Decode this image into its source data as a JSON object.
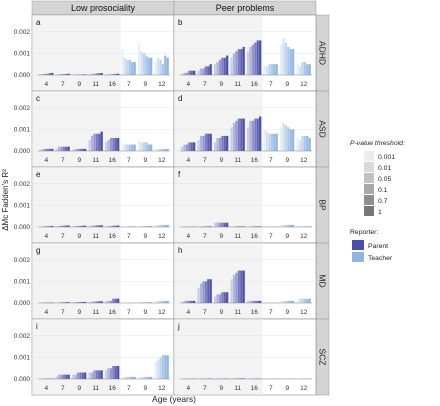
{
  "figure": {
    "col_strips": [
      "Low prosociality",
      "Peer problems"
    ],
    "row_strips": [
      "ADHD",
      "ASD",
      "BP",
      "MD",
      "SCZ"
    ],
    "ylabel": "ΔMc Fadden's R²",
    "xlabel": "Age (years)",
    "legend_pvalue_title": "P-value threshold:",
    "legend_pvalue_levels": [
      "0.001",
      "0.01",
      "0.05",
      "0.1",
      "0.7",
      "1"
    ],
    "legend_reporter_title": "Reporter:",
    "legend_reporter_items": [
      {
        "name": "Parent",
        "color": "#4a4ea6"
      },
      {
        "name": "Teacher",
        "color": "#8fb6df"
      }
    ]
  },
  "chart_data": {
    "type": "bar",
    "ylim": [
      0,
      0.0025
    ],
    "yticks": [
      "0.000",
      "0.001",
      "0.002"
    ],
    "categories": [
      "4",
      "7",
      "9",
      "11",
      "16",
      "7",
      "9",
      "12"
    ],
    "category_reporter": [
      "Parent",
      "Parent",
      "Parent",
      "Parent",
      "Parent",
      "Teacher",
      "Teacher",
      "Teacher"
    ],
    "thresholds": [
      "0.001",
      "0.01",
      "0.05",
      "0.1",
      "0.7",
      "1"
    ],
    "panels": [
      {
        "letter": "a",
        "row": "ADHD",
        "col": "Low prosociality",
        "values": [
          [
            3e-05,
            4e-05,
            5e-05,
            6e-05,
            8e-05,
            0.0001
          ],
          [
            2e-05,
            3e-05,
            4e-05,
            4e-05,
            5e-05,
            6e-05
          ],
          [
            1e-05,
            1e-05,
            2e-05,
            2e-05,
            3e-05,
            3e-05
          ],
          [
            4e-05,
            5e-05,
            6e-05,
            7e-05,
            8e-05,
            9e-05
          ],
          [
            2e-05,
            3e-05,
            3e-05,
            4e-05,
            5e-05,
            6e-05
          ],
          [
            0.0012,
            0.0008,
            0.0007,
            0.0007,
            0.0006,
            0.0006
          ],
          [
            0.0015,
            0.0011,
            0.001,
            0.0009,
            0.0008,
            0.0008
          ],
          [
            0.0006,
            0.0008,
            0.0007,
            0.0005,
            0.0009,
            0.0008
          ]
        ]
      },
      {
        "letter": "b",
        "row": "ADHD",
        "col": "Peer problems",
        "values": [
          [
            5e-05,
            0.0001,
            0.0001,
            0.0002,
            0.0002,
            0.0002
          ],
          [
            0.0002,
            0.0003,
            0.0003,
            0.0004,
            0.0004,
            0.0005
          ],
          [
            0.0005,
            0.0006,
            0.0007,
            0.0008,
            0.0008,
            0.0009
          ],
          [
            0.0008,
            0.001,
            0.0011,
            0.0012,
            0.0012,
            0.0013
          ],
          [
            0.0011,
            0.0013,
            0.0014,
            0.0015,
            0.0016,
            0.0016
          ],
          [
            0.0004,
            0.0004,
            0.0005,
            0.0005,
            0.0005,
            0.0005
          ],
          [
            0.0014,
            0.0017,
            0.0015,
            0.0013,
            0.0012,
            0.0012
          ],
          [
            0.0005,
            0.0004,
            0.0006,
            0.0006,
            0.0005,
            0.0005
          ]
        ]
      },
      {
        "letter": "c",
        "row": "ASD",
        "col": "Low prosociality",
        "values": [
          [
            5e-05,
            8e-05,
            0.0001,
            0.0001,
            0.0001,
            0.0001
          ],
          [
            0.0001,
            0.0002,
            0.0002,
            0.0002,
            0.0002,
            0.0002
          ],
          [
            5e-05,
            0.0001,
            0.0001,
            0.0001,
            0.0001,
            0.0001
          ],
          [
            0.0005,
            0.0007,
            0.0008,
            0.0008,
            0.0008,
            0.0009
          ],
          [
            0.0004,
            0.0005,
            0.0006,
            0.0006,
            0.0006,
            0.0006
          ],
          [
            0.0002,
            0.0003,
            0.0003,
            0.0003,
            0.0003,
            0.0003
          ],
          [
            0.0005,
            0.0004,
            0.0004,
            0.0004,
            0.0003,
            0.0003
          ],
          [
            0.0001,
            0.0001,
            0.0001,
            0.0001,
            0.0001,
            0.0001
          ]
        ]
      },
      {
        "letter": "d",
        "row": "ASD",
        "col": "Peer problems",
        "values": [
          [
            0.0002,
            0.0003,
            0.0003,
            0.0004,
            0.0004,
            0.0004
          ],
          [
            0.0005,
            0.0007,
            0.0007,
            0.0008,
            0.0008,
            0.0008
          ],
          [
            0.0004,
            0.0006,
            0.0006,
            0.0007,
            0.0007,
            0.0007
          ],
          [
            0.0011,
            0.0013,
            0.0014,
            0.0015,
            0.0015,
            0.0015
          ],
          [
            0.0011,
            0.0014,
            0.0014,
            0.0015,
            0.0015,
            0.0016
          ],
          [
            0.001,
            0.0009,
            0.0008,
            0.0008,
            0.0008,
            0.0008
          ],
          [
            0.0011,
            0.0013,
            0.0012,
            0.0011,
            0.001,
            0.001
          ],
          [
            0.0006,
            0.0005,
            0.0007,
            0.0007,
            0.0007,
            0.0006
          ]
        ]
      },
      {
        "letter": "e",
        "row": "BP",
        "col": "Low prosociality",
        "values": [
          [
            2e-05,
            3e-05,
            3e-05,
            4e-05,
            4e-05,
            5e-05
          ],
          [
            4e-05,
            5e-05,
            6e-05,
            6e-05,
            7e-05,
            7e-05
          ],
          [
            3e-05,
            4e-05,
            5e-05,
            5e-05,
            6e-05,
            6e-05
          ],
          [
            5e-05,
            6e-05,
            7e-05,
            7e-05,
            8e-05,
            8e-05
          ],
          [
            3e-05,
            4e-05,
            5e-05,
            6e-05,
            6e-05,
            7e-05
          ],
          [
            2e-05,
            2e-05,
            3e-05,
            3e-05,
            3e-05,
            3e-05
          ],
          [
            4e-05,
            4e-05,
            5e-05,
            5e-05,
            5e-05,
            5e-05
          ],
          [
            0.0001,
            0.0001,
            0.0001,
            0.0001,
            0.0001,
            0.0001
          ]
        ]
      },
      {
        "letter": "f",
        "row": "BP",
        "col": "Peer problems",
        "values": [
          [
            1e-05,
            1e-05,
            1e-05,
            1e-05,
            1e-05,
            1e-05
          ],
          [
            2e-05,
            2e-05,
            3e-05,
            3e-05,
            3e-05,
            3e-05
          ],
          [
            0.0002,
            0.0002,
            0.0002,
            0.0002,
            0.0002,
            0.0002
          ],
          [
            2e-05,
            2e-05,
            3e-05,
            3e-05,
            3e-05,
            3e-05
          ],
          [
            2e-05,
            2e-05,
            3e-05,
            3e-05,
            3e-05,
            3e-05
          ],
          [
            2e-05,
            2e-05,
            2e-05,
            2e-05,
            2e-05,
            2e-05
          ],
          [
            0.0001,
            0.0001,
            0.0001,
            0.0001,
            0.0001,
            0.0001
          ],
          [
            3e-05,
            3e-05,
            3e-05,
            3e-05,
            3e-05,
            3e-05
          ]
        ]
      },
      {
        "letter": "g",
        "row": "MD",
        "col": "Low prosociality",
        "values": [
          [
            1e-05,
            1e-05,
            2e-05,
            2e-05,
            2e-05,
            2e-05
          ],
          [
            2e-05,
            3e-05,
            3e-05,
            4e-05,
            4e-05,
            4e-05
          ],
          [
            3e-05,
            4e-05,
            4e-05,
            5e-05,
            5e-05,
            5e-05
          ],
          [
            5e-05,
            6e-05,
            7e-05,
            7e-05,
            8e-05,
            8e-05
          ],
          [
            0.0001,
            0.0001,
            0.0001,
            0.0002,
            0.0002,
            0.0002
          ],
          [
            1e-05,
            1e-05,
            1e-05,
            1e-05,
            1e-05,
            1e-05
          ],
          [
            3e-05,
            4e-05,
            4e-05,
            4e-05,
            4e-05,
            4e-05
          ],
          [
            0.0001,
            0.0001,
            0.0001,
            0.0001,
            0.0001,
            0.0001
          ]
        ]
      },
      {
        "letter": "h",
        "row": "MD",
        "col": "Peer problems",
        "values": [
          [
            5e-05,
            0.0001,
            0.0001,
            0.0001,
            0.0001,
            0.0001
          ],
          [
            0.0007,
            0.0009,
            0.001,
            0.001,
            0.0011,
            0.0011
          ],
          [
            0.0003,
            0.0004,
            0.0004,
            0.0005,
            0.0005,
            0.0005
          ],
          [
            0.0011,
            0.0013,
            0.0014,
            0.0015,
            0.0015,
            0.0015
          ],
          [
            0.0001,
            0.0001,
            0.0001,
            0.0001,
            0.0001,
            0.0001
          ],
          [
            1e-05,
            1e-05,
            1e-05,
            1e-05,
            1e-05,
            1e-05
          ],
          [
            0.0001,
            0.0001,
            0.0001,
            0.0001,
            0.0001,
            0.0001
          ],
          [
            0.0001,
            0.0002,
            0.0002,
            0.0002,
            0.0002,
            0.0002
          ]
        ]
      },
      {
        "letter": "i",
        "row": "SCZ",
        "col": "Low prosociality",
        "values": [
          [
            1e-05,
            2e-05,
            2e-05,
            2e-05,
            2e-05,
            2e-05
          ],
          [
            0.0001,
            0.0002,
            0.0002,
            0.0002,
            0.0002,
            0.0002
          ],
          [
            0.0002,
            0.0002,
            0.0003,
            0.0003,
            0.0003,
            0.0003
          ],
          [
            0.0003,
            0.0003,
            0.0004,
            0.0004,
            0.0004,
            0.0004
          ],
          [
            0.0004,
            0.0005,
            0.0005,
            0.0006,
            0.0006,
            0.0006
          ],
          [
            0.0001,
            0.0001,
            0.0001,
            0.0001,
            0.0001,
            0.0001
          ],
          [
            0.0001,
            0.0001,
            0.0001,
            0.0001,
            0.0001,
            0.0001
          ],
          [
            0.0008,
            0.0009,
            0.001,
            0.0011,
            0.0011,
            0.0011
          ]
        ]
      },
      {
        "letter": "j",
        "row": "SCZ",
        "col": "Peer problems",
        "values": [
          [
            1e-05,
            1e-05,
            1e-05,
            1e-05,
            1e-05,
            1e-05
          ],
          [
            2e-05,
            2e-05,
            2e-05,
            2e-05,
            2e-05,
            2e-05
          ],
          [
            2e-05,
            2e-05,
            2e-05,
            2e-05,
            2e-05,
            2e-05
          ],
          [
            3e-05,
            3e-05,
            3e-05,
            3e-05,
            3e-05,
            3e-05
          ],
          [
            2e-05,
            2e-05,
            2e-05,
            2e-05,
            2e-05,
            2e-05
          ],
          [
            1e-05,
            1e-05,
            1e-05,
            1e-05,
            1e-05,
            1e-05
          ],
          [
            2e-05,
            2e-05,
            2e-05,
            2e-05,
            2e-05,
            2e-05
          ],
          [
            1e-05,
            1e-05,
            1e-05,
            1e-05,
            1e-05,
            1e-05
          ]
        ]
      }
    ]
  }
}
